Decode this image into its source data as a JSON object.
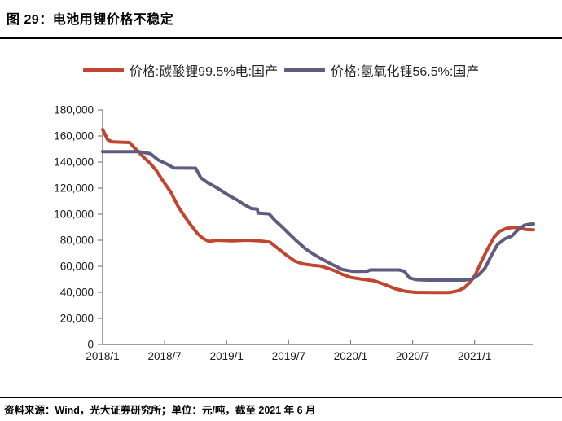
{
  "header": {
    "title": "图 29：电池用锂价格不稳定"
  },
  "footer": {
    "source": "资料来源：Wind，光大证券研究所；单位：元/吨，截至 2021 年 6 月"
  },
  "chart_data": {
    "type": "line",
    "title": "电池用锂价格不稳定",
    "unit": "元/吨",
    "grid": false,
    "legend_position": "top",
    "ylim": [
      0,
      180000
    ],
    "y_tick_step": 20000,
    "y_ticks": [
      "0",
      "20,000",
      "40,000",
      "60,000",
      "80,000",
      "100,000",
      "120,000",
      "140,000",
      "160,000",
      "180,000"
    ],
    "x_tick_months": [
      0,
      6,
      12,
      18,
      24,
      30,
      36
    ],
    "x_tick_labels": [
      "2018/1",
      "2018/7",
      "2019/1",
      "2019/7",
      "2020/1",
      "2020/7",
      "2021/1"
    ],
    "x_range_months": [
      0,
      41.7
    ],
    "axis_color": "#7f7f7f",
    "text_color": "#1a1a1a",
    "series": [
      {
        "name": "价格:碳酸锂99.5%电:国产",
        "color": "#c1462f",
        "points": [
          [
            0,
            165000
          ],
          [
            0.5,
            157000
          ],
          [
            1,
            155500
          ],
          [
            2.6,
            155000
          ],
          [
            3.2,
            150000
          ],
          [
            4,
            143500
          ],
          [
            4.6,
            139000
          ],
          [
            5.2,
            133500
          ],
          [
            5.8,
            126000
          ],
          [
            6.6,
            117000
          ],
          [
            7.3,
            106000
          ],
          [
            8,
            97500
          ],
          [
            8.6,
            91000
          ],
          [
            9.2,
            85000
          ],
          [
            9.7,
            81500
          ],
          [
            10.3,
            79000
          ],
          [
            11,
            80000
          ],
          [
            12.5,
            79500
          ],
          [
            14,
            80000
          ],
          [
            15.2,
            79500
          ],
          [
            16.2,
            78500
          ],
          [
            17,
            73500
          ],
          [
            17.8,
            68500
          ],
          [
            18.6,
            64000
          ],
          [
            19.4,
            61800
          ],
          [
            20.3,
            60800
          ],
          [
            21,
            60300
          ],
          [
            21.8,
            58500
          ],
          [
            22.5,
            56500
          ],
          [
            23.2,
            53800
          ],
          [
            24,
            51500
          ],
          [
            25,
            50200
          ],
          [
            26.3,
            48800
          ],
          [
            27.3,
            46000
          ],
          [
            28.3,
            42800
          ],
          [
            29.3,
            40800
          ],
          [
            30.3,
            40000
          ],
          [
            32,
            39800
          ],
          [
            33.6,
            39900
          ],
          [
            34.4,
            41200
          ],
          [
            35,
            43500
          ],
          [
            35.6,
            48000
          ],
          [
            36.1,
            54000
          ],
          [
            36.7,
            64500
          ],
          [
            37.3,
            74000
          ],
          [
            37.9,
            82500
          ],
          [
            38.4,
            86800
          ],
          [
            39.1,
            89200
          ],
          [
            39.8,
            89800
          ],
          [
            40.4,
            89300
          ],
          [
            40.9,
            88300
          ],
          [
            41.7,
            88000
          ]
        ]
      },
      {
        "name": "价格:氢氧化锂56.5%:国产",
        "color": "#5e5c80",
        "points": [
          [
            0,
            148000
          ],
          [
            3.5,
            148000
          ],
          [
            4.6,
            146500
          ],
          [
            5.4,
            141500
          ],
          [
            6.2,
            138500
          ],
          [
            6.9,
            135500
          ],
          [
            9,
            135300
          ],
          [
            9.5,
            128000
          ],
          [
            10.2,
            124000
          ],
          [
            10.9,
            121000
          ],
          [
            11.6,
            117500
          ],
          [
            12.3,
            114000
          ],
          [
            13,
            111000
          ],
          [
            13.6,
            107800
          ],
          [
            14.4,
            104300
          ],
          [
            14.95,
            104000
          ],
          [
            15.05,
            100800
          ],
          [
            16.1,
            100300
          ],
          [
            16.7,
            95000
          ],
          [
            17.4,
            90000
          ],
          [
            18.1,
            84500
          ],
          [
            18.9,
            78500
          ],
          [
            19.7,
            73000
          ],
          [
            20.5,
            68800
          ],
          [
            21.3,
            65200
          ],
          [
            22.2,
            61500
          ],
          [
            23.2,
            57500
          ],
          [
            24.2,
            56100
          ],
          [
            25.6,
            56200
          ],
          [
            25.9,
            57200
          ],
          [
            28.7,
            57200
          ],
          [
            29.2,
            56200
          ],
          [
            29.7,
            51000
          ],
          [
            30.4,
            49700
          ],
          [
            31.5,
            49400
          ],
          [
            35,
            49400
          ],
          [
            35.8,
            50300
          ],
          [
            36.4,
            53500
          ],
          [
            37,
            58500
          ],
          [
            37.6,
            68000
          ],
          [
            38.2,
            76500
          ],
          [
            38.9,
            81000
          ],
          [
            39.6,
            83200
          ],
          [
            40.2,
            88000
          ],
          [
            40.8,
            91500
          ],
          [
            41.3,
            92300
          ],
          [
            41.7,
            92500
          ]
        ]
      }
    ]
  }
}
